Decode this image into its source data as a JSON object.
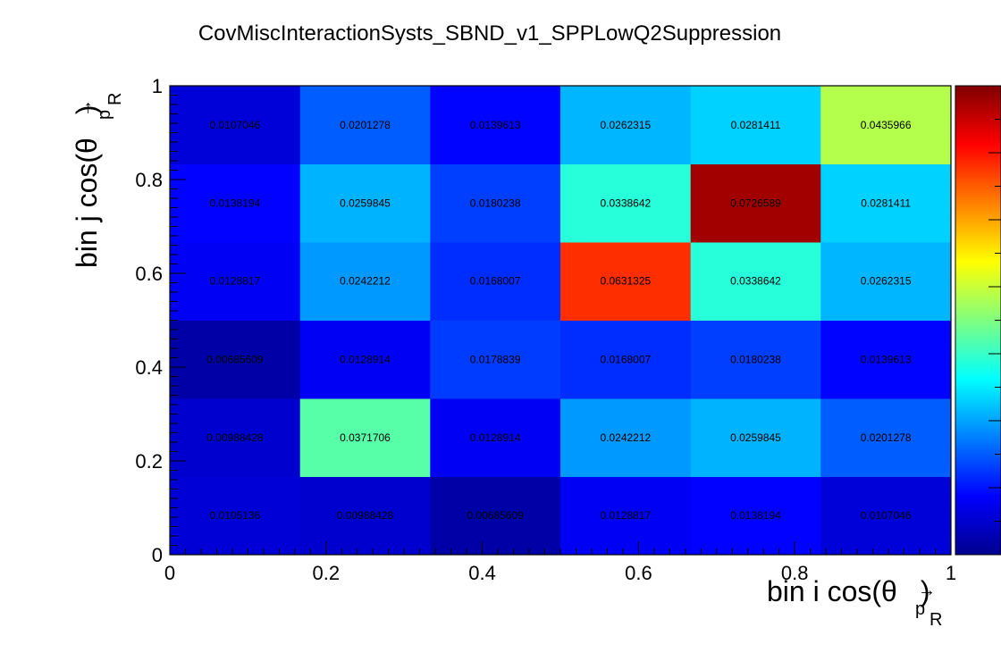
{
  "chart_data": {
    "type": "heatmap",
    "title": "CovMiscInteractionSysts_SBND_v1_SPPLowQ2Suppression",
    "xlabel": {
      "main": "bin i cos(θ",
      "sub_top": "→",
      "sub": "p",
      "sub2": "R",
      "close": ")"
    },
    "ylabel": {
      "main": "bin j cos(θ",
      "sub_top": "→",
      "sub": "p",
      "sub2": "R",
      "close": ")"
    },
    "xlim": [
      0,
      1
    ],
    "ylim": [
      0,
      1
    ],
    "x_ticks": [
      "0",
      "0.2",
      "0.4",
      "0.6",
      "0.8",
      "1"
    ],
    "y_ticks": [
      "0",
      "0.2",
      "0.4",
      "0.6",
      "0.8",
      "1"
    ],
    "x_edges": [
      0,
      0.1667,
      0.3333,
      0.5,
      0.6667,
      0.8333,
      1
    ],
    "y_edges": [
      0,
      0.1667,
      0.3333,
      0.5,
      0.6667,
      0.8333,
      1
    ],
    "z_min": 0.005,
    "z_max": 0.075,
    "values": [
      [
        0.0105136,
        0.00988428,
        0.00685609,
        0.0128817,
        0.0138194,
        0.0107046
      ],
      [
        0.00988428,
        0.0371706,
        0.0128914,
        0.0242212,
        0.0259845,
        0.0201278
      ],
      [
        0.00685609,
        0.0128914,
        0.0178839,
        0.0168007,
        0.0180238,
        0.0139613
      ],
      [
        0.0128817,
        0.0242212,
        0.0168007,
        0.0631325,
        0.0338642,
        0.0262315
      ],
      [
        0.0138194,
        0.0259845,
        0.0180238,
        0.0338642,
        0.0726589,
        0.0281411
      ],
      [
        0.0107046,
        0.0201278,
        0.0139613,
        0.0262315,
        0.0281411,
        0.0435966
      ]
    ],
    "value_labels": [
      [
        "0.0105136",
        "0.00988428",
        "0.00685609",
        "0.0128817",
        "0.0138194",
        "0.0107046"
      ],
      [
        "0.00988428",
        "0.0371706",
        "0.0128914",
        "0.0242212",
        "0.0259845",
        "0.0201278"
      ],
      [
        "0.00685609",
        "0.0128914",
        "0.0178839",
        "0.0168007",
        "0.0180238",
        "0.0139613"
      ],
      [
        "0.0128817",
        "0.0242212",
        "0.0168007",
        "0.0631325",
        "0.0338642",
        "0.0262315"
      ],
      [
        "0.0138194",
        "0.0259845",
        "0.0180238",
        "0.0338642",
        "0.0726589",
        "0.0281411"
      ],
      [
        "0.0107046",
        "0.0201278",
        "0.0139613",
        "0.0262315",
        "0.0281411",
        "0.0435966"
      ]
    ],
    "colormap": [
      "#00008f",
      "#0000ff",
      "#0080ff",
      "#00ffff",
      "#80ff80",
      "#ffff00",
      "#ff8000",
      "#ff0000",
      "#800000"
    ],
    "grid": false,
    "colorbar": true
  }
}
